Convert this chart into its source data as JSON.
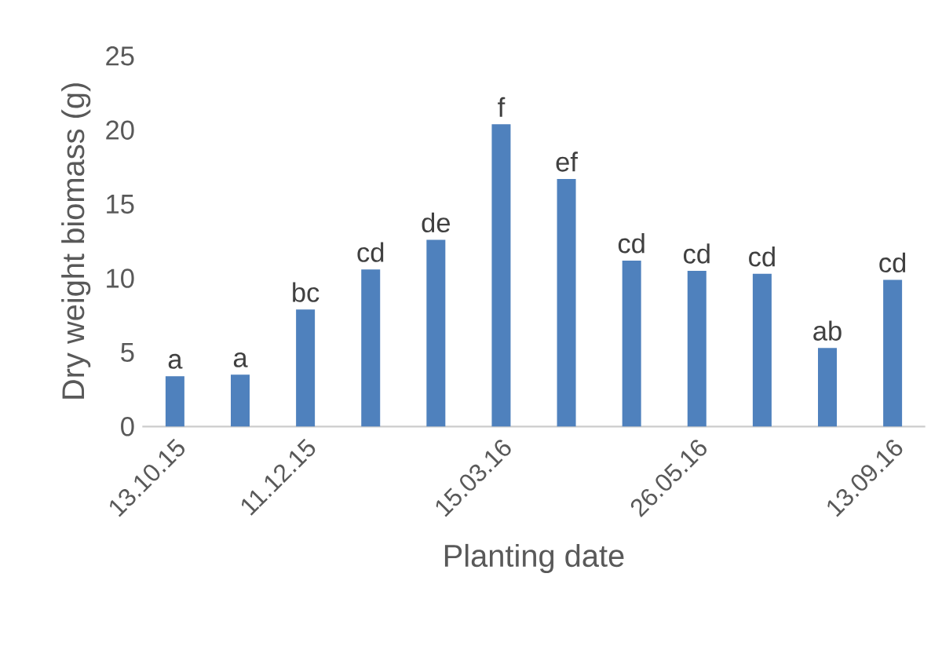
{
  "chart_data": {
    "type": "bar",
    "xlabel": "Planting date",
    "ylabel": "Dry weight biomass (g)",
    "categories": [
      "13.10.15",
      null,
      "11.12.15",
      null,
      null,
      "15.03.16",
      null,
      null,
      "26.05.16",
      null,
      null,
      "13.09.16"
    ],
    "values": [
      3.4,
      3.5,
      7.9,
      10.6,
      12.6,
      20.4,
      16.7,
      11.2,
      10.5,
      10.3,
      5.3,
      9.9
    ],
    "value_labels": [
      "a",
      "a",
      "bc",
      "cd",
      "de",
      "f",
      "ef",
      "cd",
      "cd",
      "cd",
      "ab",
      "cd"
    ],
    "color": "#4f81bd",
    "ylim": [
      0,
      25
    ],
    "yticks": [
      0,
      5,
      10,
      15,
      20,
      25
    ]
  }
}
